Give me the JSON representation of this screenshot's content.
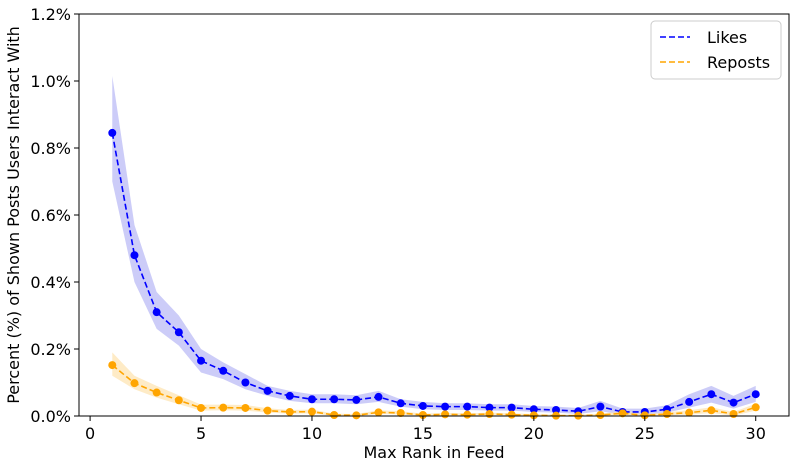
{
  "chart_data": {
    "type": "line",
    "title": "",
    "xlabel": "Max Rank in Feed",
    "ylabel": "Percent (%) of Shown Posts Users Interact With",
    "xlim": [
      -0.5,
      31.5
    ],
    "ylim": [
      0.0,
      1.2
    ],
    "xticks": [
      0,
      5,
      10,
      15,
      20,
      25,
      30
    ],
    "yticks": [
      0.0,
      0.2,
      0.4,
      0.6,
      0.8,
      1.0,
      1.2
    ],
    "ytick_labels": [
      "0.0%",
      "0.2%",
      "0.4%",
      "0.6%",
      "0.8%",
      "1.0%",
      "1.2%"
    ],
    "grid": false,
    "legend_position": "top-right",
    "x": [
      1,
      2,
      3,
      4,
      5,
      6,
      7,
      8,
      9,
      10,
      11,
      12,
      13,
      14,
      15,
      16,
      17,
      18,
      19,
      20,
      21,
      22,
      23,
      24,
      25,
      26,
      27,
      28,
      29,
      30
    ],
    "series": [
      {
        "name": "Likes",
        "color": "#0000ff",
        "band_color": "#b0b0f5",
        "style": "dashed",
        "marker": "circle",
        "values": [
          0.845,
          0.48,
          0.31,
          0.25,
          0.165,
          0.135,
          0.1,
          0.075,
          0.06,
          0.05,
          0.05,
          0.048,
          0.057,
          0.038,
          0.03,
          0.028,
          0.028,
          0.025,
          0.025,
          0.02,
          0.018,
          0.014,
          0.028,
          0.012,
          0.012,
          0.02,
          0.042,
          0.065,
          0.04,
          0.065
        ],
        "lower": [
          0.7,
          0.4,
          0.26,
          0.21,
          0.13,
          0.11,
          0.08,
          0.06,
          0.045,
          0.038,
          0.038,
          0.035,
          0.042,
          0.028,
          0.02,
          0.018,
          0.018,
          0.016,
          0.016,
          0.012,
          0.01,
          0.006,
          0.014,
          0.004,
          0.004,
          0.01,
          0.025,
          0.04,
          0.022,
          0.042
        ],
        "upper": [
          1.015,
          0.57,
          0.37,
          0.3,
          0.2,
          0.16,
          0.125,
          0.09,
          0.075,
          0.065,
          0.065,
          0.062,
          0.075,
          0.05,
          0.042,
          0.038,
          0.038,
          0.035,
          0.035,
          0.03,
          0.028,
          0.024,
          0.045,
          0.022,
          0.022,
          0.032,
          0.065,
          0.09,
          0.06,
          0.09
        ]
      },
      {
        "name": "Reposts",
        "color": "#ffa500",
        "band_color": "#fde0a8",
        "style": "dashed",
        "marker": "circle",
        "values": [
          0.152,
          0.098,
          0.07,
          0.047,
          0.024,
          0.025,
          0.024,
          0.016,
          0.012,
          0.013,
          0.003,
          0.002,
          0.011,
          0.009,
          0.003,
          0.005,
          0.004,
          0.006,
          0.004,
          0.002,
          0.001,
          0.001,
          0.003,
          0.008,
          0.002,
          0.006,
          0.01,
          0.017,
          0.006,
          0.026
        ],
        "lower": [
          0.12,
          0.08,
          0.055,
          0.035,
          0.016,
          0.017,
          0.016,
          0.01,
          0.007,
          0.008,
          0.0,
          0.0,
          0.006,
          0.005,
          0.0,
          0.002,
          0.001,
          0.003,
          0.001,
          0.0,
          0.0,
          0.0,
          0.0,
          0.003,
          0.0,
          0.002,
          0.004,
          0.009,
          0.001,
          0.016
        ],
        "upper": [
          0.19,
          0.12,
          0.09,
          0.062,
          0.034,
          0.034,
          0.033,
          0.023,
          0.018,
          0.019,
          0.007,
          0.006,
          0.017,
          0.014,
          0.007,
          0.009,
          0.008,
          0.01,
          0.008,
          0.006,
          0.004,
          0.004,
          0.007,
          0.014,
          0.006,
          0.011,
          0.017,
          0.026,
          0.012,
          0.037
        ]
      }
    ]
  }
}
